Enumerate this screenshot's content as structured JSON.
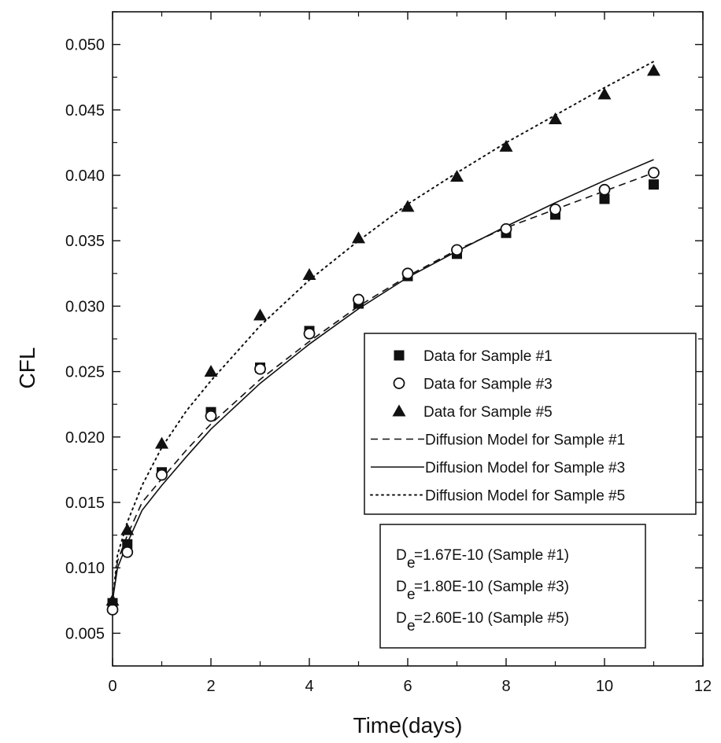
{
  "chart_data": {
    "type": "scatter",
    "xlabel": "Time(days)",
    "ylabel": "CFL",
    "xlim": [
      0,
      12
    ],
    "ylim": [
      0.0025,
      0.0525
    ],
    "xticks": [
      0,
      2,
      4,
      6,
      8,
      10,
      12
    ],
    "xtick_labels": [
      "0",
      "2",
      "4",
      "6",
      "8",
      "10",
      "12"
    ],
    "yticks": [
      0.005,
      0.01,
      0.015,
      0.02,
      0.025,
      0.03,
      0.035,
      0.04,
      0.045,
      0.05
    ],
    "ytick_labels": [
      "0.005",
      "0.010",
      "0.015",
      "0.020",
      "0.025",
      "0.030",
      "0.035",
      "0.040",
      "0.045",
      "0.050"
    ],
    "grid": false,
    "legend_position": "right",
    "series": [
      {
        "name": "Data for Sample #1",
        "kind": "scatter",
        "marker": "square",
        "x": [
          0,
          0.3,
          1,
          2,
          3,
          4,
          5,
          6,
          7,
          8,
          9,
          10,
          11
        ],
        "y": [
          0.0073,
          0.0118,
          0.0173,
          0.0219,
          0.0253,
          0.0281,
          0.0302,
          0.0323,
          0.034,
          0.0356,
          0.037,
          0.0382,
          0.0393
        ]
      },
      {
        "name": "Data for Sample #3",
        "kind": "scatter",
        "marker": "circle",
        "x": [
          0,
          0.3,
          1,
          2,
          3,
          4,
          5,
          6,
          7,
          8,
          9,
          10,
          11
        ],
        "y": [
          0.0068,
          0.0112,
          0.0171,
          0.0216,
          0.0252,
          0.0279,
          0.0305,
          0.0325,
          0.0343,
          0.0359,
          0.0374,
          0.0389,
          0.0402
        ]
      },
      {
        "name": "Data for Sample #5",
        "kind": "scatter",
        "marker": "triangle",
        "x": [
          0,
          0.3,
          1,
          2,
          3,
          4,
          5,
          6,
          7,
          8,
          9,
          10,
          11
        ],
        "y": [
          0.0075,
          0.0129,
          0.0195,
          0.025,
          0.0293,
          0.0324,
          0.0352,
          0.0376,
          0.0399,
          0.0422,
          0.0443,
          0.0462,
          0.048
        ]
      },
      {
        "name": "Diffusion Model for Sample #1",
        "kind": "line",
        "dash": "dashed",
        "x": [
          0,
          0.1,
          0.3,
          0.6,
          1,
          1.5,
          2,
          3,
          4,
          5,
          6,
          7,
          8,
          9,
          10,
          11
        ],
        "y": [
          0.0075,
          0.0105,
          0.0125,
          0.015,
          0.0168,
          0.019,
          0.021,
          0.0244,
          0.0273,
          0.03,
          0.0323,
          0.0343,
          0.036,
          0.0374,
          0.0388,
          0.0402
        ]
      },
      {
        "name": "Diffusion Model for Sample #3",
        "kind": "line",
        "dash": "solid",
        "x": [
          0,
          0.1,
          0.3,
          0.6,
          1,
          1.5,
          2,
          3,
          4,
          5,
          6,
          7,
          8,
          9,
          10,
          11
        ],
        "y": [
          0.0075,
          0.01,
          0.0119,
          0.0144,
          0.0163,
          0.0185,
          0.0206,
          0.0241,
          0.0271,
          0.0298,
          0.0322,
          0.0342,
          0.0361,
          0.0379,
          0.0396,
          0.0412
        ]
      },
      {
        "name": "Diffusion Model for Sample #5",
        "kind": "line",
        "dash": "dotted",
        "x": [
          0,
          0.1,
          0.3,
          0.6,
          1,
          1.5,
          2,
          3,
          4,
          5,
          6,
          7,
          8,
          9,
          10,
          11
        ],
        "y": [
          0.0075,
          0.011,
          0.0135,
          0.0163,
          0.0192,
          0.022,
          0.0243,
          0.0285,
          0.032,
          0.035,
          0.0378,
          0.0402,
          0.0425,
          0.0446,
          0.0467,
          0.0487
        ]
      }
    ],
    "annotation_box": [
      {
        "sym": "D",
        "sub": "e",
        "text": "=1.67E-10 (Sample #1)"
      },
      {
        "sym": "D",
        "sub": "e",
        "text": "=1.80E-10 (Sample #3)"
      },
      {
        "sym": "D",
        "sub": "e",
        "text": "=2.60E-10 (Sample #5)"
      }
    ]
  }
}
